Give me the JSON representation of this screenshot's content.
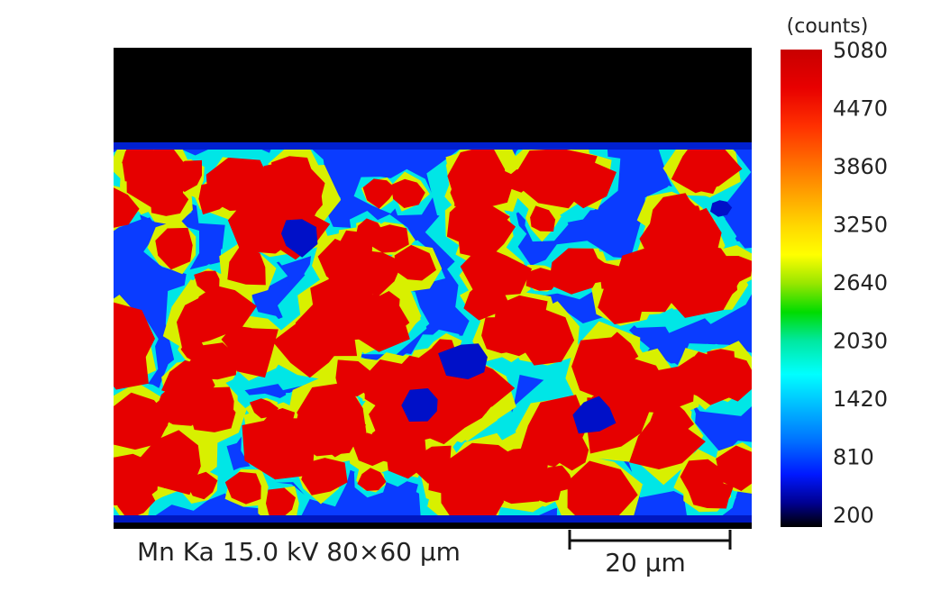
{
  "colorbar": {
    "unit": "(counts)",
    "ticks": [
      5080,
      4470,
      3860,
      3250,
      2640,
      2030,
      1420,
      810,
      200
    ]
  },
  "caption": "Mn Ka 15.0 kV 80×60 µm",
  "scale_bar": {
    "label": "20 µm"
  }
}
